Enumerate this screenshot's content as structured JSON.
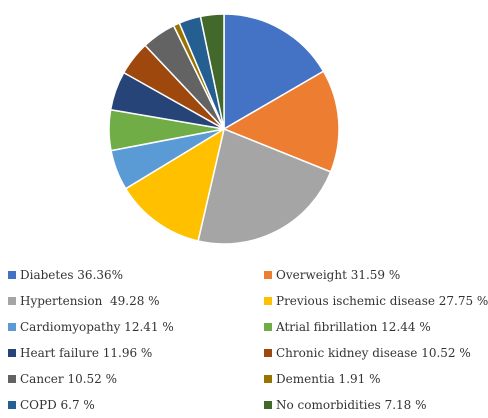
{
  "chart_data": {
    "type": "pie",
    "categories": [
      "Diabetes",
      "Overweight",
      "Hypertension",
      "Previous ischemic disease",
      "Cardiomyopathy",
      "Atrial fibrillation",
      "Heart failure",
      "Chronic kidney disease",
      "Cancer",
      "Dementia",
      "COPD",
      "No comorbidities"
    ],
    "values": [
      36.36,
      31.59,
      49.28,
      27.75,
      12.41,
      12.44,
      11.96,
      10.52,
      10.52,
      1.91,
      6.7,
      7.18
    ],
    "legend_labels": [
      "Diabetes 36.36%",
      "Overweight 31.59 %",
      "Hypertension  49.28 %",
      "Previous ischemic disease 27.75 %",
      "Cardiomyopathy 12.41 %",
      "Atrial fibrillation 12.44 %",
      "Heart failure 11.96 %",
      "Chronic kidney disease 10.52 %",
      "Cancer 10.52 %",
      "Dementia 1.91 %",
      "COPD 6.7 %",
      "No comorbidities 7.18 %"
    ],
    "colors": [
      "#4472C4",
      "#ED7D31",
      "#A5A5A5",
      "#FFC000",
      "#5B9BD5",
      "#70AD47",
      "#264478",
      "#9E480E",
      "#636363",
      "#997300",
      "#255E91",
      "#43682B"
    ],
    "start_angle_deg": 0,
    "direction": "clockwise",
    "legend_position": "bottom",
    "title": ""
  }
}
